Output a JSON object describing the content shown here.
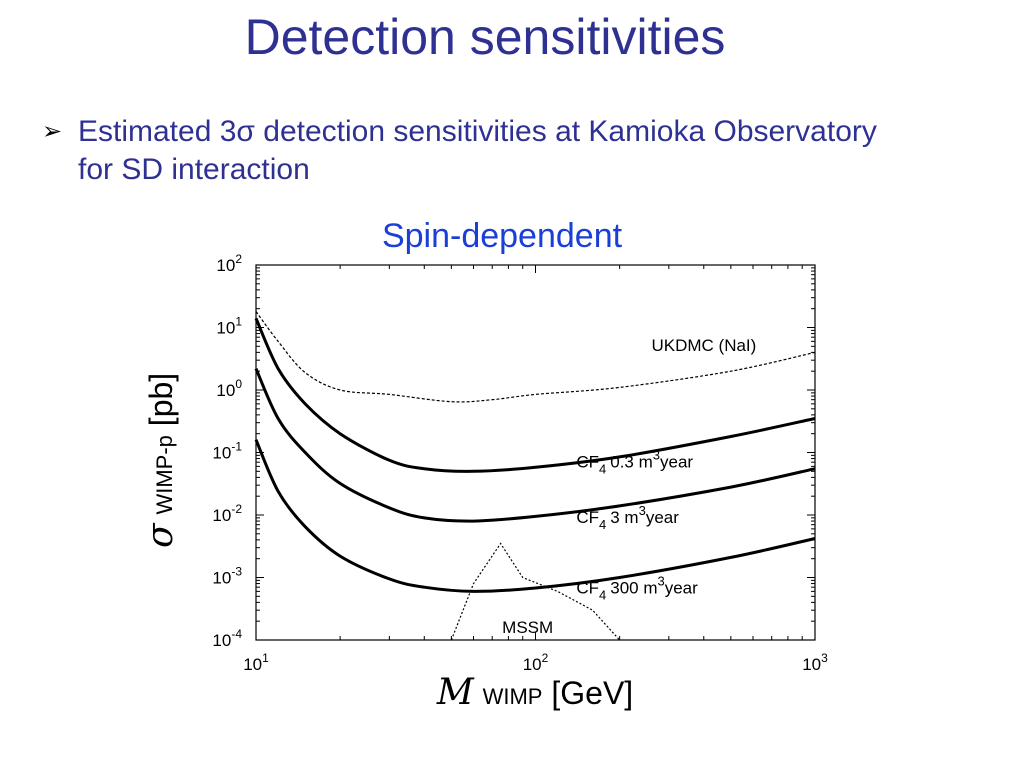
{
  "slide": {
    "title": "Detection sensitivities",
    "bullet_line1": "Estimated 3σ detection sensitivities at Kamioka Observatory",
    "bullet_line2": "for SD interaction"
  },
  "chart_data": {
    "type": "line",
    "title": "Spin-dependent",
    "xlabel_symbol": "M",
    "xlabel_sub": "WIMP",
    "xlabel_unit": "[GeV]",
    "ylabel_symbol": "σ",
    "ylabel_sub": "WIMP-p",
    "ylabel_unit": "[pb]",
    "x_scale": "log",
    "y_scale": "log",
    "xlim": [
      10,
      1000
    ],
    "ylim": [
      0.0001,
      100
    ],
    "x_ticks": [
      {
        "base": "10",
        "exp": "1",
        "value": 10
      },
      {
        "base": "10",
        "exp": "2",
        "value": 100
      },
      {
        "base": "10",
        "exp": "3",
        "value": 1000
      }
    ],
    "y_ticks": [
      {
        "base": "10",
        "exp": "2",
        "value": 100
      },
      {
        "base": "10",
        "exp": "1",
        "value": 10
      },
      {
        "base": "10",
        "exp": "0",
        "value": 1
      },
      {
        "base": "10",
        "exp": "-1",
        "value": 0.1
      },
      {
        "base": "10",
        "exp": "-2",
        "value": 0.01
      },
      {
        "base": "10",
        "exp": "-3",
        "value": 0.001
      },
      {
        "base": "10",
        "exp": "-4",
        "value": 0.0001
      }
    ],
    "grid": false,
    "series": [
      {
        "name": "CF4 0.3 m3year",
        "style": "solid",
        "x": [
          10,
          12,
          15,
          20,
          30,
          40,
          60,
          100,
          200,
          500,
          1000
        ],
        "y": [
          14,
          2.2,
          0.6,
          0.2,
          0.075,
          0.055,
          0.05,
          0.058,
          0.085,
          0.18,
          0.35
        ]
      },
      {
        "name": "CF4 3 m3year",
        "style": "solid",
        "x": [
          10,
          12,
          15,
          20,
          30,
          40,
          60,
          100,
          200,
          500,
          1000
        ],
        "y": [
          2.2,
          0.35,
          0.1,
          0.032,
          0.013,
          0.009,
          0.008,
          0.0095,
          0.014,
          0.028,
          0.055
        ]
      },
      {
        "name": "CF4 300 m3year",
        "style": "solid",
        "x": [
          10,
          12,
          15,
          20,
          30,
          40,
          60,
          100,
          200,
          500,
          1000
        ],
        "y": [
          0.16,
          0.024,
          0.0065,
          0.0022,
          0.00095,
          0.0007,
          0.0006,
          0.00068,
          0.001,
          0.0021,
          0.0042
        ]
      },
      {
        "name": "UKDMC (NaI)",
        "style": "dashed",
        "x": [
          10,
          12,
          15,
          20,
          30,
          50,
          70,
          100,
          200,
          500,
          1000
        ],
        "y": [
          18,
          6,
          1.9,
          1.0,
          0.85,
          0.65,
          0.7,
          0.85,
          1.1,
          2.0,
          4.0
        ]
      },
      {
        "name": "MSSM",
        "style": "dotted",
        "x": [
          50,
          60,
          75,
          90,
          120,
          160,
          200
        ],
        "y": [
          0.0001,
          0.0008,
          0.0035,
          0.001,
          0.0006,
          0.0003,
          0.0001
        ]
      }
    ],
    "annotations": [
      {
        "id": "ukdmc",
        "text": "UKDMC (NaI)",
        "x": 260,
        "y": 4.2
      },
      {
        "id": "cf4a",
        "base": "CF",
        "sub": "4",
        "rest1": "0.3 m",
        "sup": "3",
        "rest2": "year",
        "x": 140,
        "y": 0.058
      },
      {
        "id": "cf4b",
        "base": "CF",
        "sub": "4",
        "rest1": "3 m",
        "sup": "3",
        "rest2": "year",
        "x": 140,
        "y": 0.0075
      },
      {
        "id": "cf4c",
        "base": "CF",
        "sub": "4",
        "rest1": "300 m",
        "sup": "3",
        "rest2": "year",
        "x": 140,
        "y": 0.00055
      },
      {
        "id": "mssm",
        "text": "MSSM",
        "x": 76,
        "y": 0.00013
      }
    ]
  }
}
